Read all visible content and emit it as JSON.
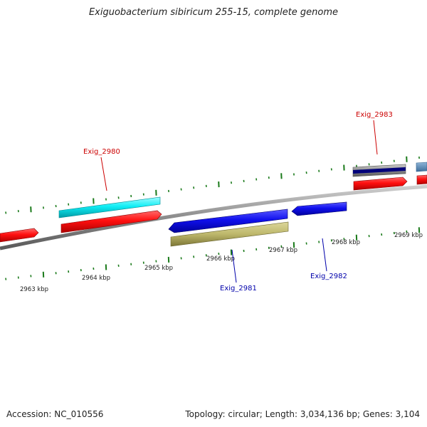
{
  "title": "Exiguobacterium sibiricum 255-15, complete genome",
  "footer": {
    "accession": "Accession: NC_010556",
    "topology": "Topology: circular; Length: 3,034,136 bp; Genes: 3,104"
  },
  "ticks": [
    "2963 kbp",
    "2964 kbp",
    "2965 kbp",
    "2966 kbp",
    "2967 kbp",
    "2968 kbp",
    "2969 kbp"
  ],
  "genes": [
    {
      "name": "Exig_2980",
      "color": "#cc0000"
    },
    {
      "name": "Exig_2981",
      "color": "#0000aa"
    },
    {
      "name": "Exig_2982",
      "color": "#0000aa"
    },
    {
      "name": "Exig_2983",
      "color": "#cc0000"
    }
  ],
  "colors": {
    "backbone": "#888888",
    "forward_cds": "#ff0000",
    "reverse_cds": "#0000ee",
    "cyan_feature": "#00e5ee",
    "tan_feature": "#bdb76b",
    "tick_marks": "#1a7a1a"
  }
}
